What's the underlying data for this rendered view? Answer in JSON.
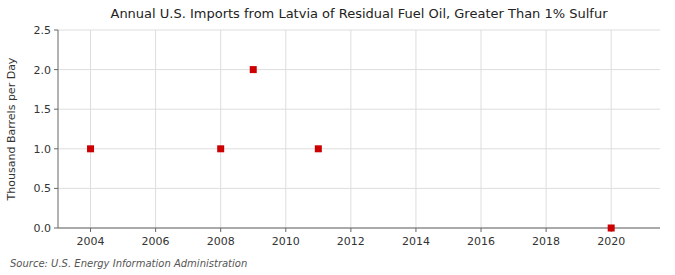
{
  "chart_data": {
    "type": "scatter",
    "title": "Annual U.S. Imports from Latvia of Residual Fuel Oil, Greater Than 1% Sulfur",
    "y_label": "Thousand Barrels per Day",
    "source": "Source: U.S. Energy Information Administration",
    "x": [
      2004,
      2008,
      2009,
      2011,
      2020
    ],
    "values": [
      1.0,
      1.0,
      2.0,
      1.0,
      0.0
    ],
    "color": "#cc0000",
    "marker": "square",
    "xlim": [
      2003.0,
      2021.5
    ],
    "ylim": [
      0.0,
      2.5
    ],
    "xticks": [
      2004,
      2006,
      2008,
      2010,
      2012,
      2014,
      2016,
      2018,
      2020
    ],
    "yticks": [
      {
        "value": 0.0,
        "label": "0.0"
      },
      0.5,
      {
        "value": 1.0,
        "label": "1.0"
      },
      1.5,
      {
        "value": 2.0,
        "label": "2.0"
      },
      2.5
    ],
    "grid": true
  }
}
